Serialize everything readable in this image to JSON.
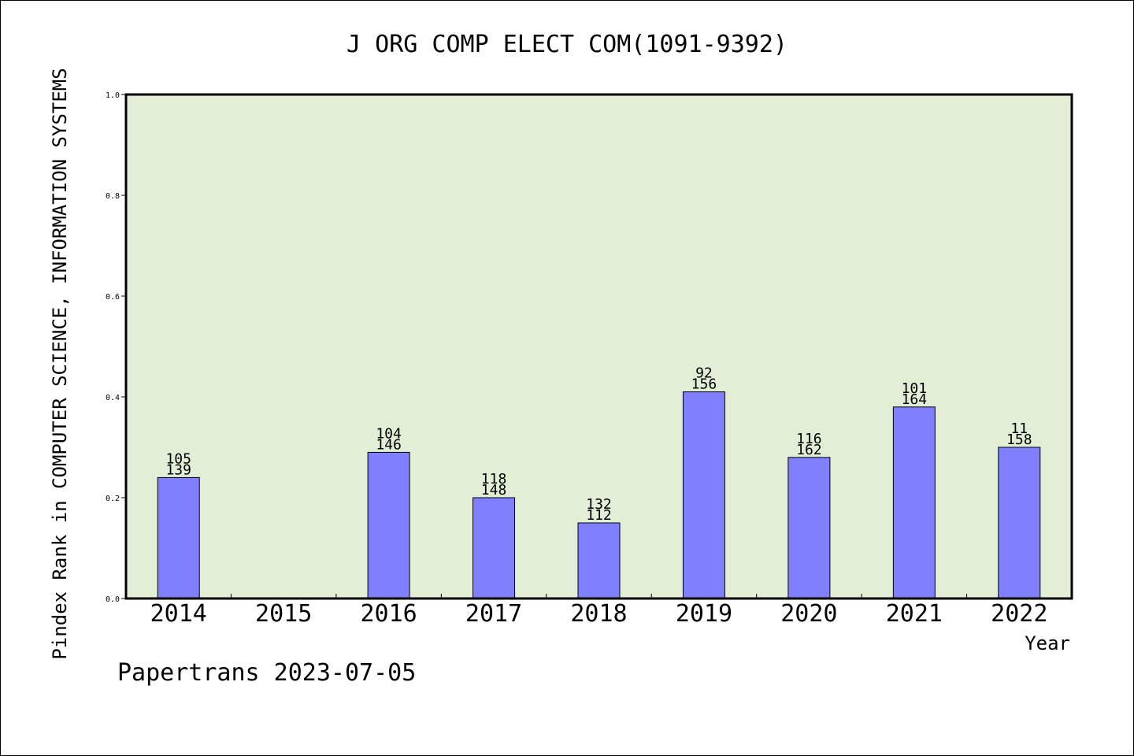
{
  "chart_data": {
    "type": "bar",
    "title": "J ORG COMP ELECT COM(1091-9392)",
    "xlabel": "Year",
    "ylabel": "Pindex Rank in COMPUTER SCIENCE, INFORMATION SYSTEMS",
    "ylim": [
      0,
      1.0
    ],
    "yticks": [
      "0.0",
      "0.2",
      "0.4",
      "0.6",
      "0.8",
      "1.0"
    ],
    "categories": [
      "2014",
      "2015",
      "2016",
      "2017",
      "2018",
      "2019",
      "2020",
      "2021",
      "2022"
    ],
    "values": [
      0.24,
      null,
      0.29,
      0.2,
      0.15,
      0.41,
      0.28,
      0.38,
      0.3
    ],
    "labels_top": [
      "105",
      "",
      "104",
      "118",
      "132",
      "92",
      "116",
      "101",
      "11"
    ],
    "labels_bottom": [
      "139",
      "",
      "146",
      "148",
      "112",
      "156",
      "162",
      "164",
      "158"
    ],
    "grid": false,
    "colors": {
      "bar": "#8080ff",
      "plot_background": "#e2efd6"
    }
  },
  "footer": "Papertrans 2023-07-05"
}
